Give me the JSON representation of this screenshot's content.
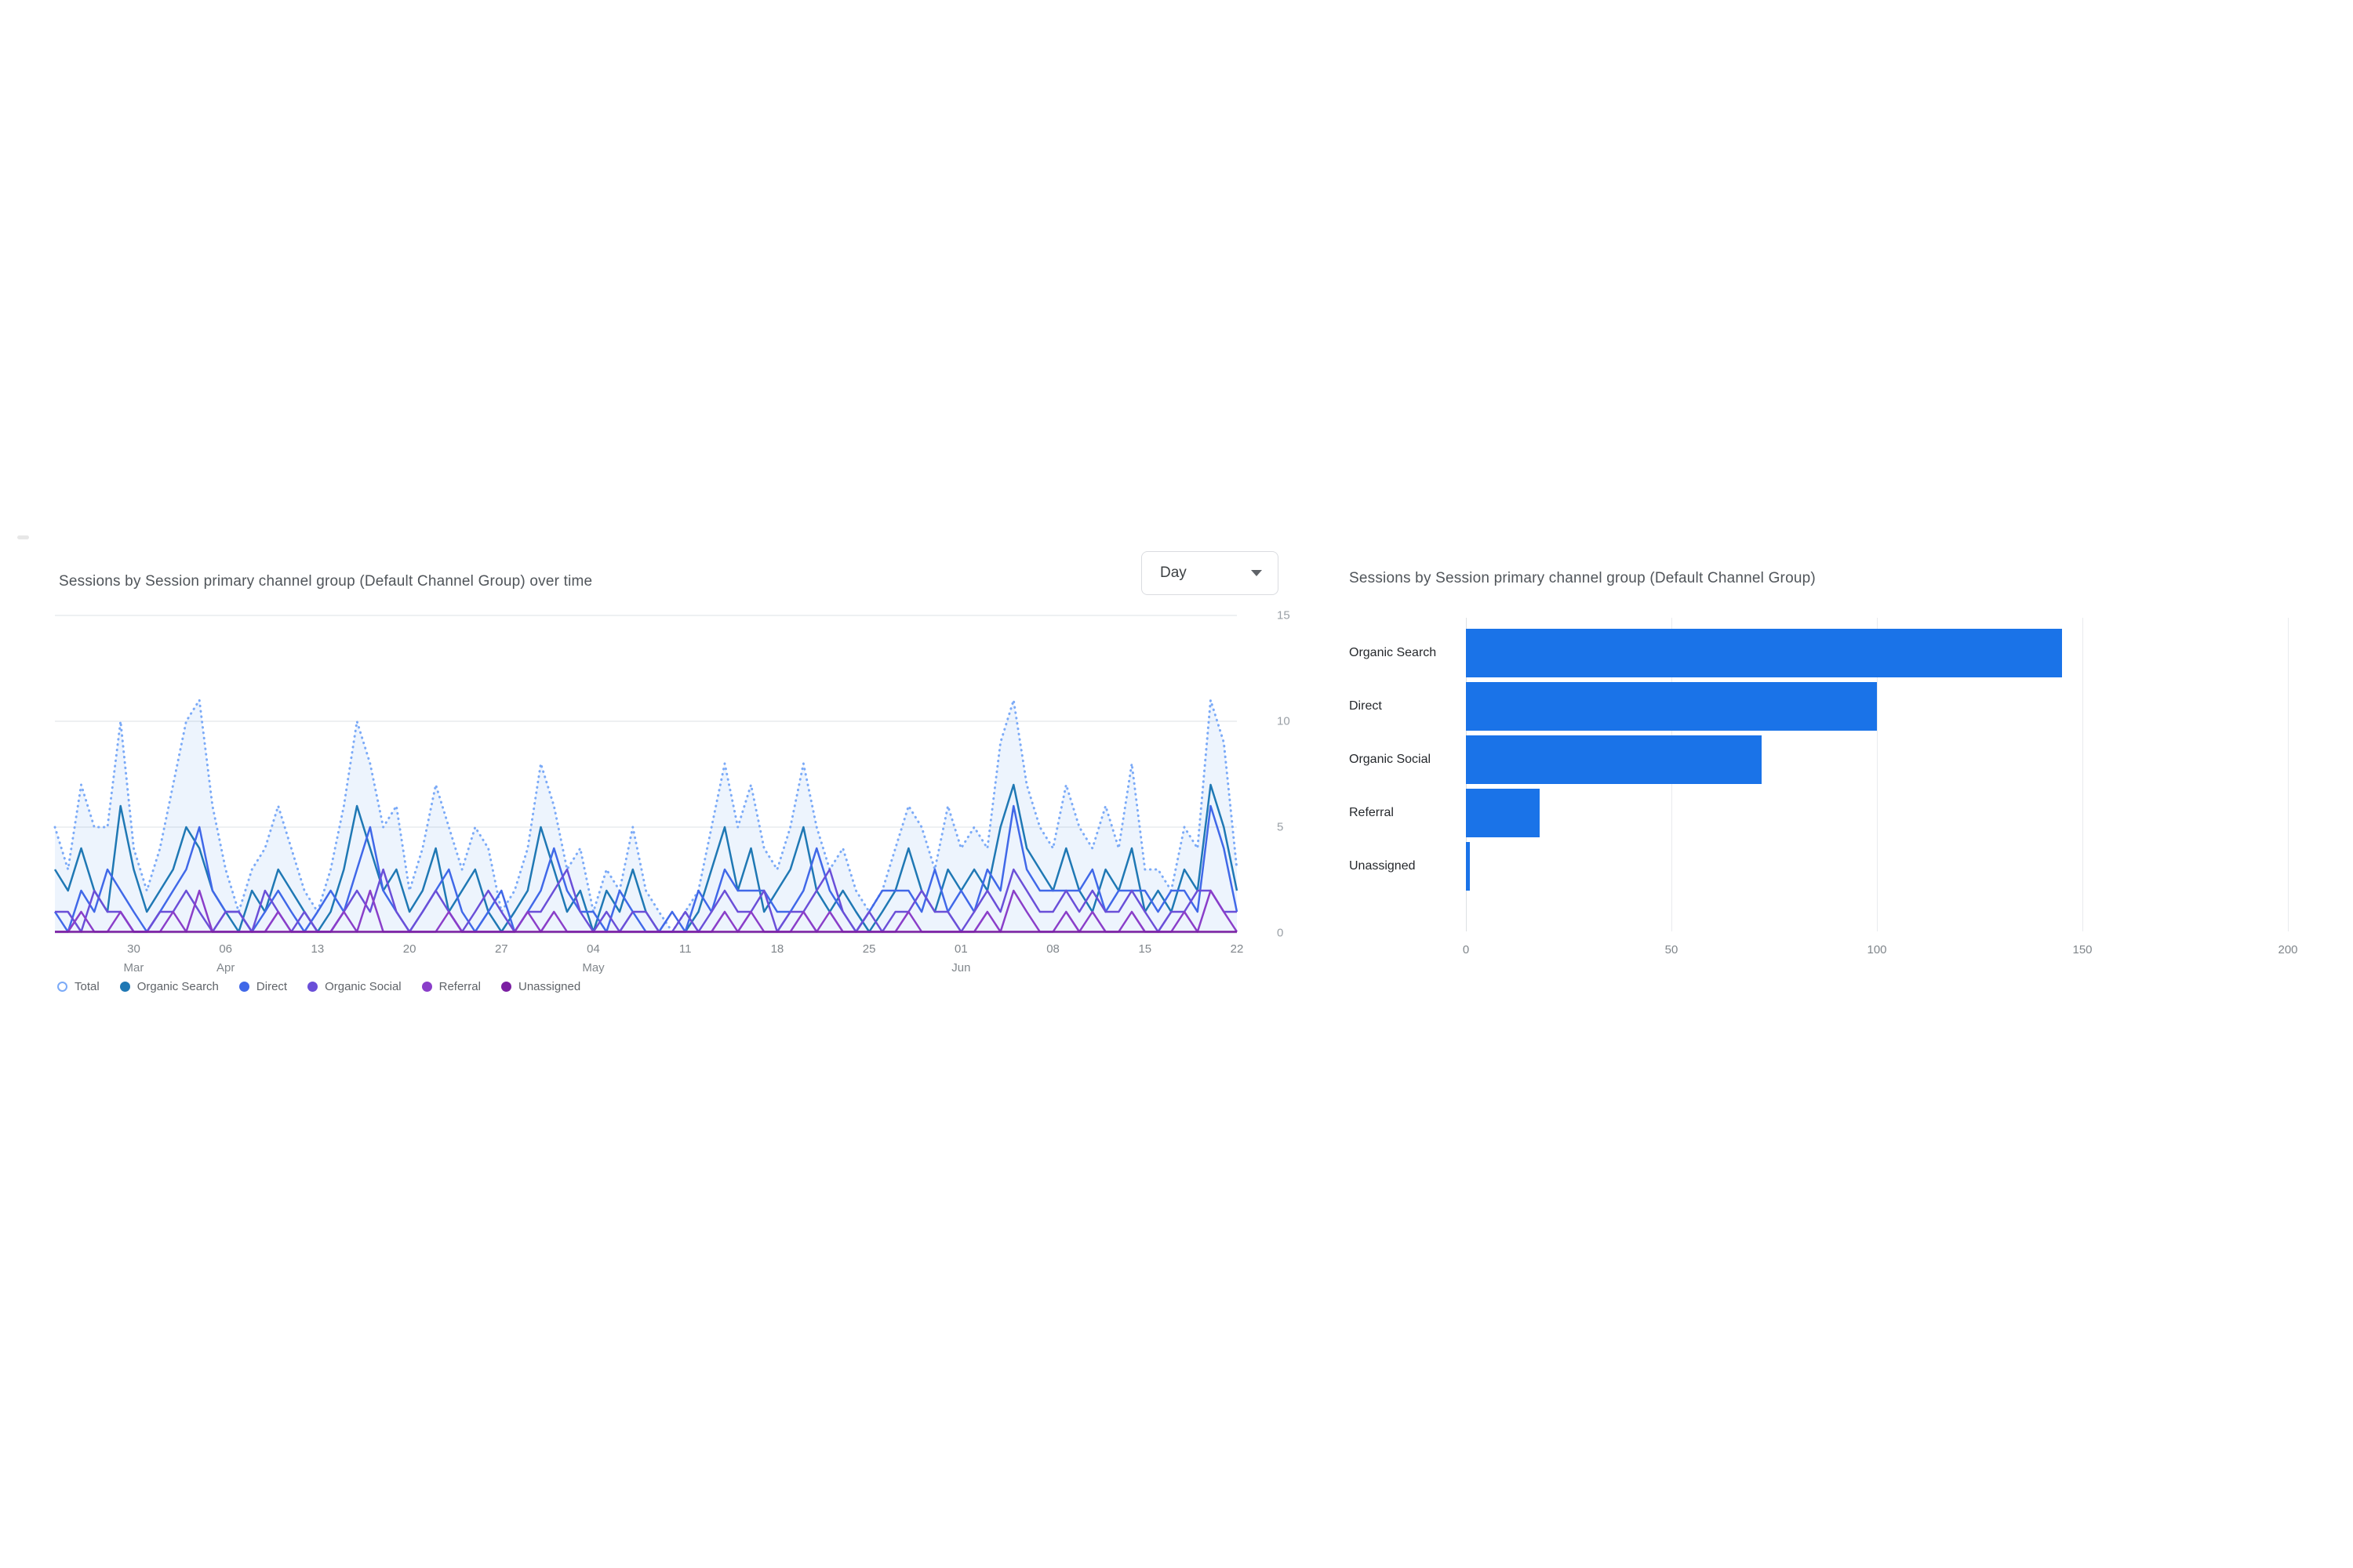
{
  "left_chart_ui": {
    "title": "Sessions by Session primary channel group (Default Channel Group) over time",
    "granularity_dropdown": {
      "value": "Day",
      "caret_icon": "caret-down-icon"
    }
  },
  "right_chart_ui": {
    "title": "Sessions by Session primary channel group (Default Channel Group)"
  },
  "colors": {
    "bar_blue": "#1a73e8",
    "gridline": "#e9ebee",
    "axis_text": "#80868b",
    "title_text": "#50555a"
  },
  "chart_data": [
    {
      "type": "line",
      "title": "Sessions by Session primary channel group (Default Channel Group) over time",
      "granularity": "Day",
      "ylabel": "",
      "xlabel": "",
      "ylim": [
        0,
        15
      ],
      "y_ticks": [
        15,
        10,
        5,
        0
      ],
      "grid": true,
      "legend_position": "bottom-left",
      "x_tick_indices": [
        6,
        13,
        20,
        27,
        34,
        41,
        48,
        55,
        62,
        69,
        76,
        83,
        90
      ],
      "x_tick_days": [
        "30",
        "06",
        "13",
        "20",
        "27",
        "04",
        "11",
        "18",
        "25",
        "01",
        "08",
        "15",
        "22"
      ],
      "x_tick_months": [
        "Mar",
        "Apr",
        "",
        "",
        "",
        "May",
        "",
        "",
        "",
        "Jun",
        "",
        "",
        ""
      ],
      "series": [
        {
          "name": "Total",
          "color": "#7baaf7",
          "style": "dotted",
          "hollow_legend_dot": true,
          "fill": "rgba(26,115,232,0.08)",
          "values": [
            5,
            3,
            7,
            5,
            5,
            10,
            4,
            2,
            4,
            7,
            10,
            11,
            6,
            3,
            1,
            3,
            4,
            6,
            4,
            2,
            1,
            3,
            6,
            10,
            8,
            5,
            6,
            2,
            4,
            7,
            5,
            3,
            5,
            4,
            1,
            2,
            4,
            8,
            6,
            3,
            4,
            1,
            3,
            2,
            5,
            2,
            1,
            0,
            1,
            2,
            5,
            8,
            5,
            7,
            4,
            3,
            5,
            8,
            5,
            3,
            4,
            2,
            1,
            2,
            4,
            6,
            5,
            3,
            6,
            4,
            5,
            4,
            9,
            11,
            7,
            5,
            4,
            7,
            5,
            4,
            6,
            4,
            8,
            3,
            3,
            2,
            5,
            4,
            11,
            9,
            3
          ]
        },
        {
          "name": "Organic Search",
          "color": "#1f78b4",
          "style": "solid",
          "values": [
            3,
            2,
            4,
            2,
            1,
            6,
            3,
            1,
            2,
            3,
            5,
            4,
            2,
            1,
            0,
            2,
            1,
            3,
            2,
            1,
            0,
            1,
            3,
            6,
            4,
            2,
            3,
            1,
            2,
            4,
            1,
            2,
            3,
            1,
            0,
            1,
            2,
            5,
            3,
            1,
            2,
            0,
            2,
            1,
            3,
            1,
            0,
            0,
            0,
            1,
            3,
            5,
            2,
            4,
            1,
            2,
            3,
            5,
            2,
            1,
            2,
            1,
            0,
            1,
            2,
            4,
            2,
            1,
            3,
            2,
            3,
            2,
            5,
            7,
            4,
            3,
            2,
            4,
            2,
            1,
            3,
            2,
            4,
            1,
            2,
            1,
            3,
            2,
            7,
            5,
            2
          ]
        },
        {
          "name": "Direct",
          "color": "#4068e8",
          "style": "solid",
          "values": [
            1,
            0,
            2,
            1,
            3,
            2,
            1,
            0,
            1,
            2,
            3,
            5,
            2,
            1,
            1,
            0,
            1,
            2,
            1,
            0,
            1,
            2,
            1,
            3,
            5,
            2,
            1,
            0,
            1,
            2,
            3,
            1,
            0,
            1,
            2,
            0,
            1,
            2,
            4,
            2,
            1,
            1,
            0,
            2,
            1,
            0,
            0,
            1,
            0,
            2,
            1,
            3,
            2,
            2,
            2,
            1,
            1,
            2,
            4,
            2,
            1,
            0,
            1,
            2,
            2,
            2,
            1,
            3,
            1,
            2,
            1,
            3,
            2,
            6,
            3,
            2,
            2,
            2,
            2,
            3,
            1,
            2,
            2,
            2,
            1,
            2,
            2,
            1,
            6,
            4,
            1
          ]
        },
        {
          "name": "Organic Social",
          "color": "#6a4fd8",
          "style": "solid",
          "values": [
            1,
            1,
            0,
            2,
            1,
            1,
            0,
            0,
            1,
            1,
            2,
            1,
            0,
            1,
            1,
            0,
            2,
            1,
            0,
            1,
            0,
            0,
            1,
            2,
            1,
            3,
            1,
            0,
            1,
            2,
            1,
            0,
            1,
            2,
            1,
            0,
            1,
            1,
            2,
            3,
            1,
            0,
            1,
            0,
            1,
            1,
            0,
            0,
            1,
            0,
            1,
            2,
            1,
            1,
            2,
            0,
            1,
            1,
            2,
            3,
            1,
            0,
            1,
            0,
            1,
            1,
            2,
            1,
            1,
            0,
            1,
            2,
            1,
            3,
            2,
            1,
            1,
            2,
            1,
            2,
            1,
            1,
            2,
            1,
            0,
            1,
            1,
            2,
            2,
            1,
            1
          ]
        },
        {
          "name": "Referral",
          "color": "#8a3ec9",
          "style": "solid",
          "values": [
            0,
            0,
            1,
            0,
            0,
            1,
            0,
            0,
            0,
            1,
            0,
            2,
            0,
            0,
            0,
            0,
            0,
            1,
            0,
            0,
            0,
            0,
            1,
            0,
            2,
            0,
            0,
            0,
            0,
            0,
            1,
            0,
            0,
            0,
            0,
            0,
            1,
            0,
            1,
            0,
            0,
            0,
            0,
            0,
            0,
            0,
            0,
            0,
            0,
            0,
            0,
            1,
            0,
            1,
            0,
            0,
            0,
            1,
            0,
            1,
            0,
            0,
            0,
            0,
            0,
            1,
            0,
            0,
            0,
            0,
            0,
            1,
            0,
            2,
            1,
            0,
            0,
            1,
            0,
            1,
            0,
            0,
            1,
            0,
            0,
            0,
            1,
            0,
            2,
            1,
            0
          ]
        },
        {
          "name": "Unassigned",
          "color": "#7b1fa2",
          "style": "solid",
          "values": [
            0,
            0,
            0,
            0,
            0,
            0,
            0,
            0,
            0,
            0,
            0,
            0,
            0,
            0,
            0,
            0,
            0,
            0,
            0,
            0,
            0,
            0,
            0,
            0,
            0,
            0,
            0,
            0,
            0,
            0,
            0,
            0,
            0,
            0,
            0,
            0,
            0,
            0,
            0,
            0,
            0,
            0,
            0,
            0,
            0,
            0,
            0,
            0,
            0,
            0,
            0,
            0,
            0,
            0,
            0,
            0,
            0,
            0,
            0,
            0,
            0,
            0,
            0,
            0,
            0,
            0,
            0,
            0,
            0,
            0,
            0,
            0,
            0,
            0,
            0,
            0,
            0,
            0,
            0,
            0,
            0,
            0,
            0,
            0,
            0,
            0,
            0,
            0,
            0,
            0,
            0
          ]
        }
      ]
    },
    {
      "type": "bar",
      "title": "Sessions by Session primary channel group (Default Channel Group)",
      "orientation": "horizontal",
      "categories": [
        "Organic Search",
        "Direct",
        "Organic Social",
        "Referral",
        "Unassigned"
      ],
      "values": [
        145,
        100,
        72,
        18,
        1
      ],
      "bar_color": "#1a73e8",
      "xlim": [
        0,
        200
      ],
      "x_ticks": [
        0,
        50,
        100,
        150,
        200
      ],
      "grid": true
    }
  ]
}
